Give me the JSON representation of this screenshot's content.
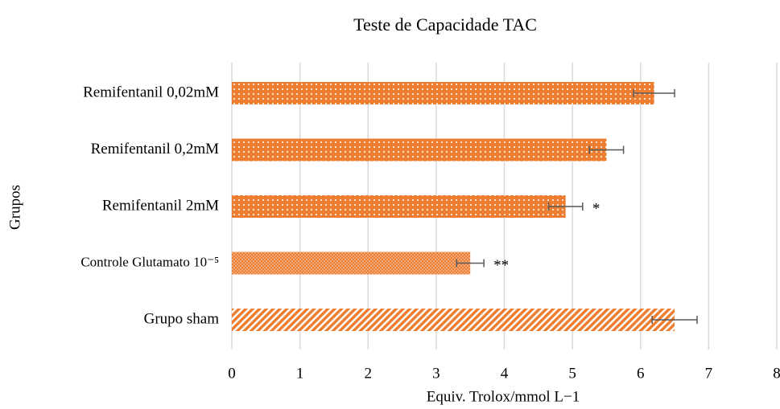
{
  "chart_data": {
    "type": "hbar",
    "title": "Teste de Capacidade TAC",
    "xlabel": "Equiv. Trolox/mmol L−1",
    "ylabel": "Grupos",
    "categories": [
      "Remifentanil 0,02mM",
      "Remifentanil 0,2mM",
      "Remifentanil 2mM",
      "Controle Glutamato 10⁻⁵",
      "Grupo sham"
    ],
    "values": [
      6.2,
      5.5,
      4.9,
      3.5,
      6.5
    ],
    "errors": [
      0.3,
      0.25,
      0.25,
      0.2,
      0.33
    ],
    "patterns": [
      "dots",
      "dots",
      "dots",
      "checker",
      "stripes"
    ],
    "color": "#ed7d31",
    "annotations": [
      {
        "category": "Remifentanil 2mM",
        "text": "*"
      },
      {
        "category": "Controle Glutamato 10⁻⁵",
        "text": "**"
      }
    ],
    "xlim": [
      0,
      8
    ],
    "xticks": [
      0,
      1,
      2,
      3,
      4,
      5,
      6,
      7,
      8
    ],
    "grid": true
  }
}
